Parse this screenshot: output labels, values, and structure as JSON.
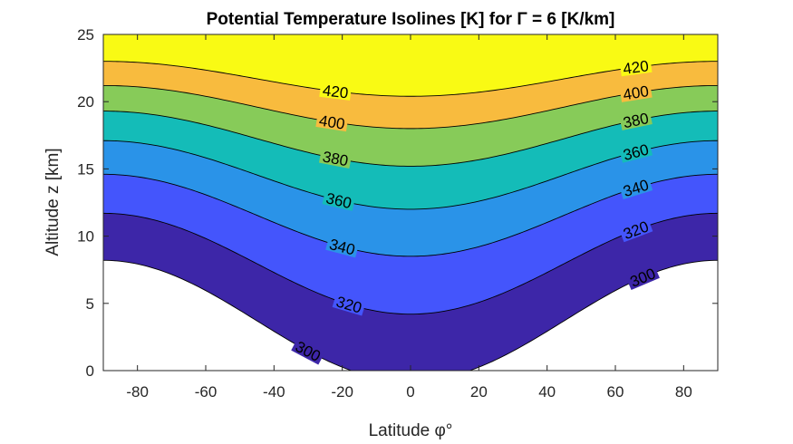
{
  "chart_data": {
    "type": "contour",
    "title": "Potential Temperature Isolines [K] for Γ = 6 [K/km]",
    "xlabel": "Latitude φ°",
    "ylabel": "Altitude z [km]",
    "xlim": [
      -90,
      90
    ],
    "ylim": [
      0,
      25
    ],
    "xticks": [
      "-80",
      "-60",
      "-40",
      "-20",
      "0",
      "20",
      "40",
      "60",
      "80"
    ],
    "yticks": [
      "0",
      "5",
      "10",
      "15",
      "20",
      "25"
    ],
    "grid": false,
    "legend": "none",
    "levels": [
      {
        "value": 300,
        "label": "300",
        "z_equator": -0.8,
        "z_pole": 8.2,
        "fill": "#3d26a8"
      },
      {
        "value": 320,
        "label": "320",
        "z_equator": 4.2,
        "z_pole": 11.7,
        "fill": "#4455fc"
      },
      {
        "value": 340,
        "label": "340",
        "z_equator": 8.5,
        "z_pole": 14.6,
        "fill": "#2a93e8"
      },
      {
        "value": 360,
        "label": "360",
        "z_equator": 12.0,
        "z_pole": 17.1,
        "fill": "#14bcb8"
      },
      {
        "value": 380,
        "label": "380",
        "z_equator": 15.2,
        "z_pole": 19.3,
        "fill": "#87cb59"
      },
      {
        "value": 400,
        "label": "400",
        "z_equator": 18.0,
        "z_pole": 21.2,
        "fill": "#f8bb3e"
      },
      {
        "value": 420,
        "label": "420",
        "z_equator": 20.4,
        "z_pole": 23.0,
        "fill": "#f9fa14"
      }
    ],
    "contour_labels": [
      {
        "text": "300",
        "lat": -30,
        "level": 300
      },
      {
        "text": "320",
        "lat": -18,
        "level": 320
      },
      {
        "text": "340",
        "lat": -20,
        "level": 340
      },
      {
        "text": "360",
        "lat": -21,
        "level": 360
      },
      {
        "text": "380",
        "lat": -22,
        "level": 380
      },
      {
        "text": "400",
        "lat": -23,
        "level": 400
      },
      {
        "text": "420",
        "lat": -22,
        "level": 420
      },
      {
        "text": "300",
        "lat": 68,
        "level": 300
      },
      {
        "text": "320",
        "lat": 66,
        "level": 320
      },
      {
        "text": "340",
        "lat": 66,
        "level": 340
      },
      {
        "text": "360",
        "lat": 66,
        "level": 360
      },
      {
        "text": "380",
        "lat": 66,
        "level": 380
      },
      {
        "text": "400",
        "lat": 66,
        "level": 400
      },
      {
        "text": "420",
        "lat": 66,
        "level": 420
      }
    ],
    "colors": {
      "below_lowest": "#ffffff",
      "above_highest": "#f9fa14",
      "contour_line": "#000000",
      "axis": "#262626"
    }
  }
}
